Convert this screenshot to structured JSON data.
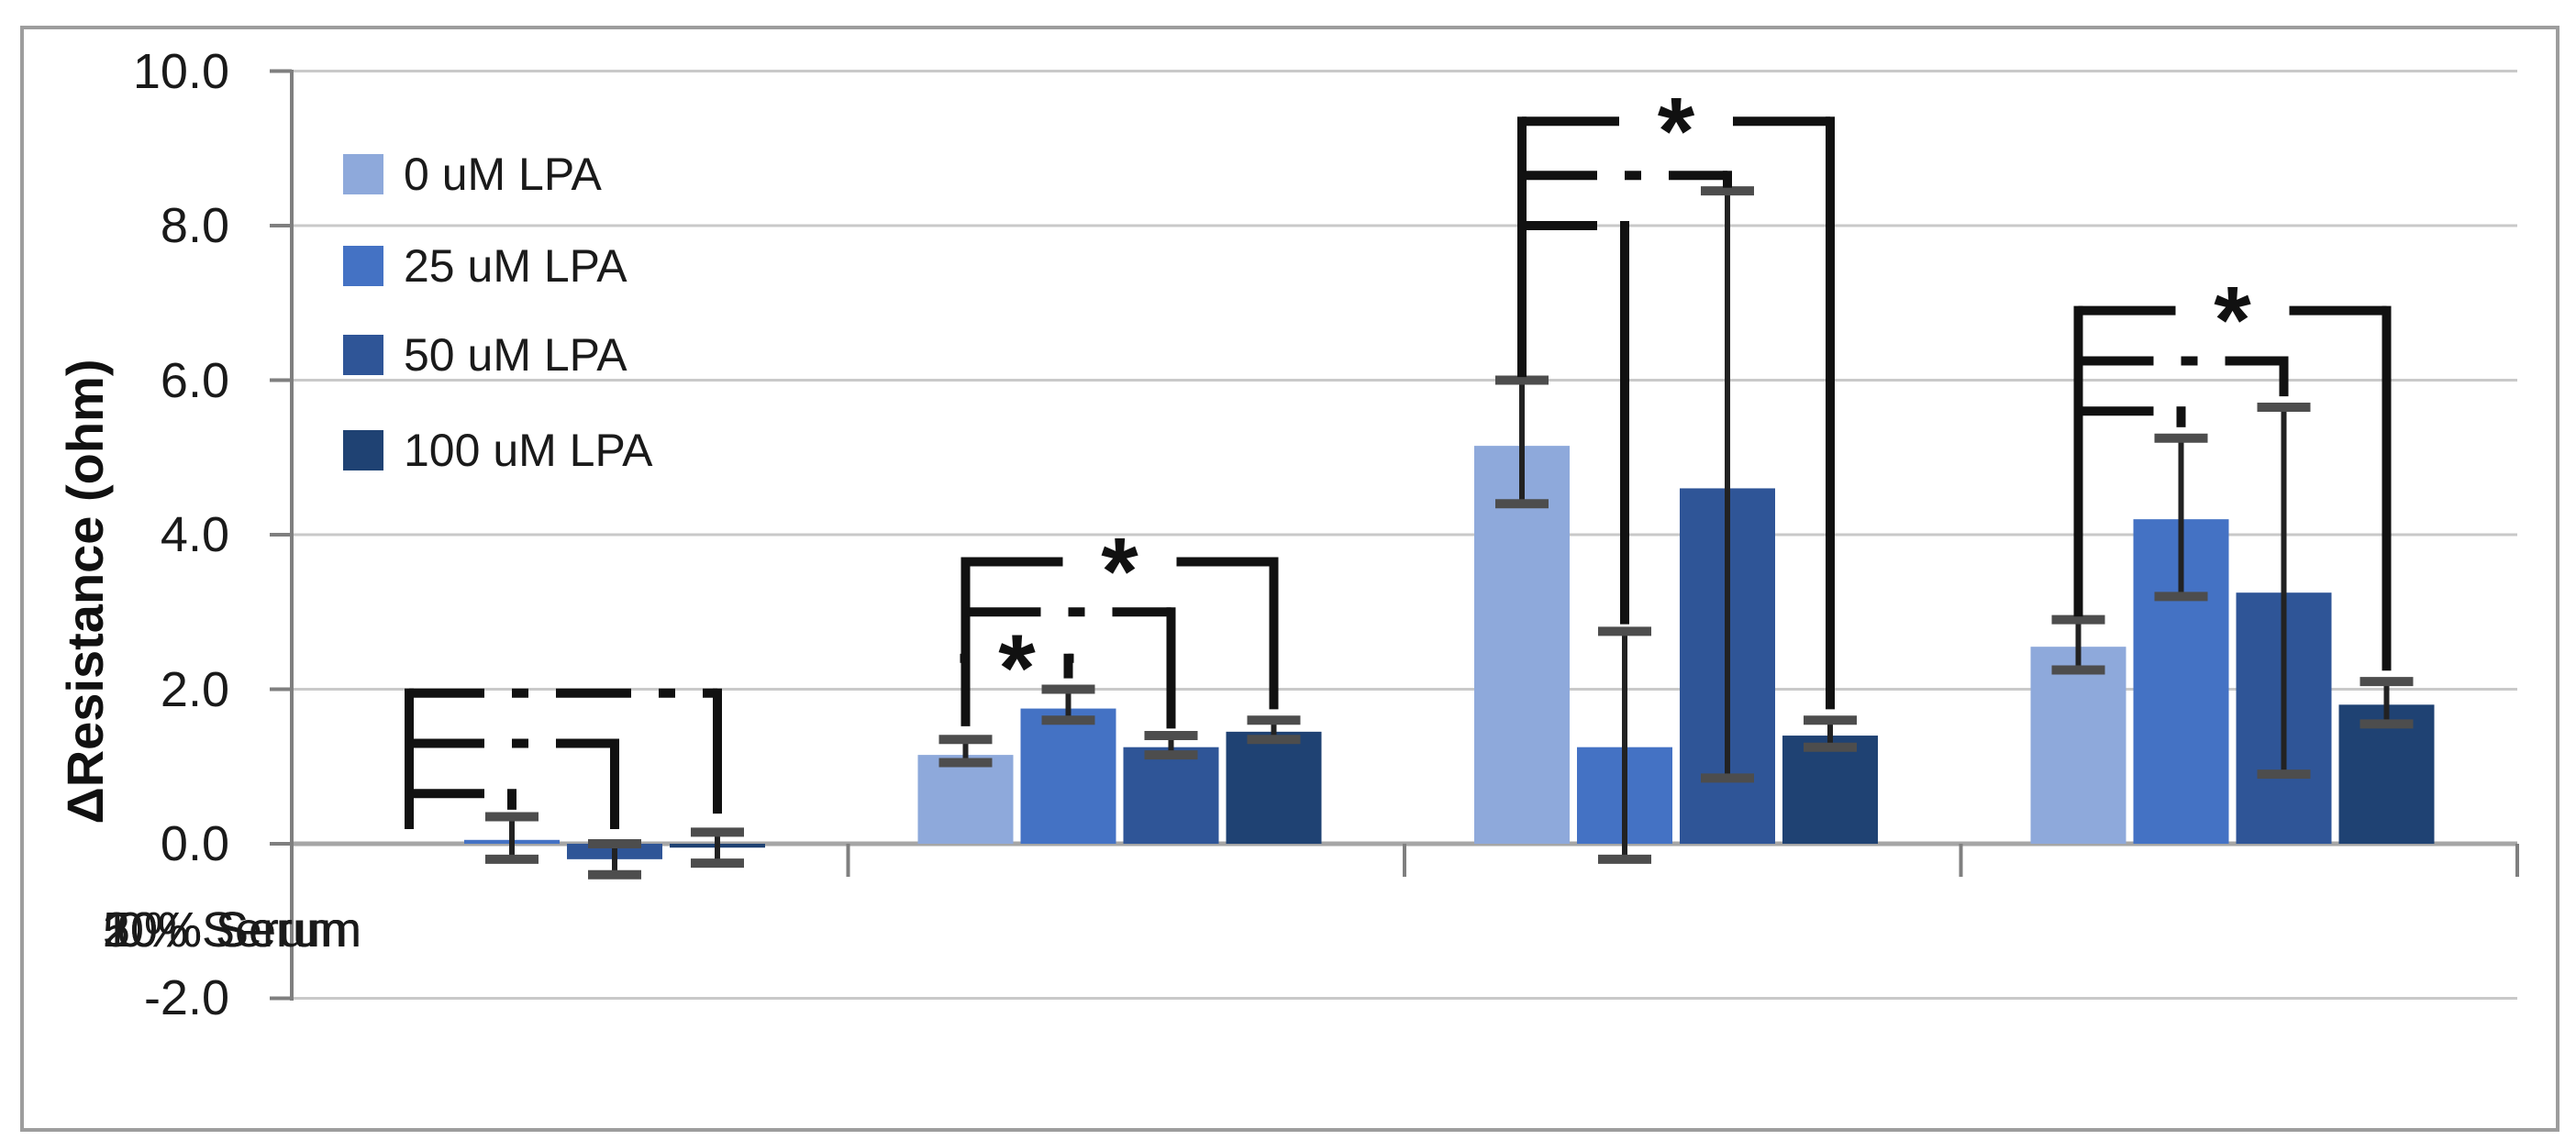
{
  "figure": {
    "background": "#ffffff",
    "border_color": "#9d9d9d"
  },
  "chart_data": {
    "type": "bar",
    "title": "",
    "xlabel": "",
    "ylabel": "ΔResistance (ohm)",
    "ylim": [
      -2.0,
      10.0
    ],
    "ytick_values": [
      10,
      8,
      6,
      4,
      2,
      0,
      -2
    ],
    "ytick_labels": [
      "10.0",
      "8.0",
      "6.0",
      "4.0",
      "2.0",
      "0.0",
      "-2.0"
    ],
    "grid": true,
    "legend_position": "top-left-inside",
    "categories": [
      "0% Serum",
      "10% Serum",
      "20% Serum",
      "50% Serum"
    ],
    "series": [
      {
        "name": "0 uM LPA",
        "color": "#8EA9DB",
        "values": [
          0.0,
          1.15,
          5.15,
          2.55
        ],
        "err_top": [
          null,
          1.35,
          6.0,
          2.9
        ],
        "err_bot": [
          null,
          1.05,
          4.4,
          2.25
        ]
      },
      {
        "name": "25 uM LPA",
        "color": "#4472C4",
        "values": [
          0.05,
          1.75,
          1.25,
          4.2
        ],
        "err_top": [
          0.35,
          2.0,
          2.75,
          5.25
        ],
        "err_bot": [
          -0.2,
          1.6,
          -0.2,
          3.2
        ]
      },
      {
        "name": "50 uM LPA",
        "color": "#2F5597",
        "values": [
          -0.2,
          1.25,
          4.6,
          3.25
        ],
        "err_top": [
          0.0,
          1.4,
          8.45,
          5.65
        ],
        "err_bot": [
          -0.4,
          1.15,
          0.85,
          0.9
        ]
      },
      {
        "name": "100 uM LPA",
        "color": "#1F4273",
        "values": [
          -0.05,
          1.45,
          1.4,
          1.8
        ],
        "err_top": [
          0.15,
          1.6,
          1.6,
          2.1
        ],
        "err_bot": [
          -0.25,
          1.35,
          1.25,
          1.55
        ]
      }
    ],
    "significance_marker": "*",
    "significance_brackets": [
      {
        "group": 0,
        "anchor_series": 0,
        "vertical_span": [
          0.25,
          1.95
        ],
        "branches": [
          {
            "level": 0.65,
            "target_series": 1,
            "drop_to": 0.5,
            "style": "dashdot",
            "star": false
          },
          {
            "level": 1.3,
            "target_series": 2,
            "drop_to": 0.25,
            "style": "dashdot",
            "star": false
          },
          {
            "level": 1.95,
            "target_series": 3,
            "drop_to": 0.45,
            "style": "dashdot",
            "star": false
          }
        ]
      },
      {
        "group": 1,
        "anchor_series": 0,
        "vertical_span": [
          1.58,
          3.65
        ],
        "branches": [
          {
            "level": 2.4,
            "target_series": 1,
            "drop_to": 2.2,
            "style": "solid",
            "star": true
          },
          {
            "level": 3.0,
            "target_series": 2,
            "drop_to": 1.55,
            "style": "dashdot",
            "star": false
          },
          {
            "level": 3.65,
            "target_series": 3,
            "drop_to": 1.8,
            "style": "solid",
            "star": true
          }
        ]
      },
      {
        "group": 2,
        "anchor_series": 0,
        "vertical_span": [
          6.1,
          9.35
        ],
        "branches": [
          {
            "level": 8.0,
            "target_series": 1,
            "drop_to": 2.9,
            "style": "dashdot",
            "star": false
          },
          {
            "level": 8.65,
            "target_series": 2,
            "drop_to": 8.55,
            "style": "dashdot",
            "star": false
          },
          {
            "level": 9.35,
            "target_series": 3,
            "drop_to": 1.8,
            "style": "solid",
            "star": true
          }
        ]
      },
      {
        "group": 3,
        "anchor_series": 0,
        "vertical_span": [
          3.0,
          6.9
        ],
        "branches": [
          {
            "level": 5.6,
            "target_series": 1,
            "drop_to": 5.45,
            "style": "dashdot",
            "star": false
          },
          {
            "level": 6.25,
            "target_series": 2,
            "drop_to": 5.85,
            "style": "dashdot",
            "star": false
          },
          {
            "level": 6.9,
            "target_series": 3,
            "drop_to": 2.3,
            "style": "solid",
            "star": true
          }
        ]
      }
    ]
  }
}
